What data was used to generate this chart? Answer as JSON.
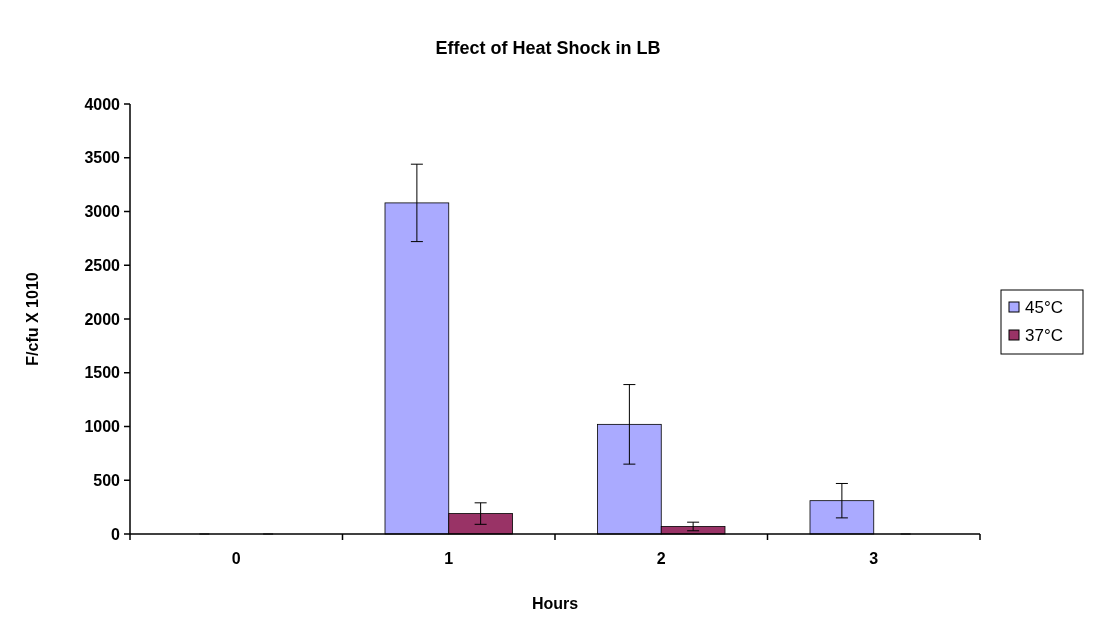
{
  "chart_data": {
    "type": "bar",
    "title": "Effect of Heat Shock in LB",
    "xlabel": "Hours",
    "ylabel": "F/cfu X 1010",
    "categories": [
      "0",
      "1",
      "2",
      "3"
    ],
    "series": [
      {
        "name": "45°C",
        "color": "#aaaaff",
        "values": [
          0,
          3080,
          1020,
          310
        ],
        "errors": [
          null,
          360,
          370,
          160
        ]
      },
      {
        "name": "37°C",
        "color": "#993366",
        "values": [
          0,
          190,
          70,
          0
        ],
        "errors": [
          null,
          100,
          40,
          null
        ]
      }
    ],
    "ylim": [
      0,
      4000
    ],
    "yticks": [
      0,
      500,
      1000,
      1500,
      2000,
      2500,
      3000,
      3500,
      4000
    ],
    "grid": false,
    "legend": "right"
  }
}
